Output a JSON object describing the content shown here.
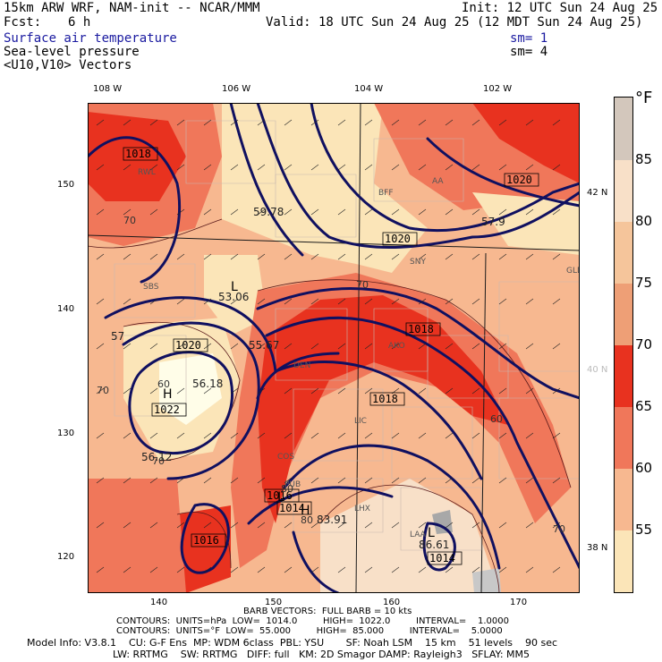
{
  "header": {
    "model_line": "15km ARW WRF, NAM-init -- NCAR/MMM",
    "init_line": "Init: 12 UTC Sun 24 Aug 25",
    "fcst_label": "Fcst:",
    "fcst_value": "6 h",
    "valid_line": "Valid: 18 UTC Sun 24 Aug 25 (12 MDT Sun 24 Aug 25)",
    "field1": "Surface air temperature",
    "field1_sm": "sm= 1",
    "field2": "Sea-level pressure",
    "field2_sm": "sm= 4",
    "field3": "<U10,V10> Vectors"
  },
  "axes": {
    "top_lon": [
      "108 W",
      "106 W",
      "104 W",
      "102 W"
    ],
    "right_lat": [
      "42 N",
      "40 N",
      "38 N"
    ],
    "left_y": [
      "150",
      "140",
      "130",
      "120"
    ],
    "bottom_x": [
      "140",
      "150",
      "160",
      "170"
    ]
  },
  "colorbar": {
    "unit": "°F",
    "labels": [
      "85",
      "80",
      "75",
      "70",
      "65",
      "60",
      "55"
    ],
    "colors": [
      "#fdf4e0",
      "#d3c7bc",
      "#f8e0c8",
      "#f5c59b",
      "#ee9f76",
      "#e8321f",
      "#f0775a",
      "#f7b890",
      "#fbe5b8",
      "#fffde8"
    ]
  },
  "map_labels": {
    "pressure": [
      "1018",
      "1020",
      "1020",
      "1018",
      "1022",
      "1020",
      "1018",
      "1016",
      "1016",
      "1014",
      "1014"
    ],
    "temp": [
      "70",
      "70",
      "70",
      "60",
      "70",
      "80",
      "60",
      "70",
      "80"
    ],
    "extrema": [
      "59.78",
      "57.9",
      "53.06",
      "57",
      "56.18",
      "55.67",
      "56.12",
      "83.91",
      "86.61"
    ],
    "highs_lows": [
      "H",
      "L",
      "H",
      "L",
      "L"
    ],
    "stations": [
      "RWL",
      "BFF",
      "AA",
      "SNY",
      "DEN",
      "AKO",
      "LIC",
      "COS",
      "PUB",
      "LHX",
      "LAA",
      "GLD",
      "SBS"
    ]
  },
  "footer": {
    "barb": "BARB VECTORS:  FULL BARB = 10 kts",
    "contours1": "CONTOURS:  UNITS=hPa  LOW=  1014.0         HIGH=  1022.0         INTERVAL=    1.0000",
    "contours2": "CONTOURS:  UNITS=°F  LOW=  55.000         HIGH=  85.000         INTERVAL=    5.0000",
    "model1": "Model Info: V3.8.1    CU: G-F Ens  MP: WDM 6class  PBL: YSU       SF: Noah LSM    15 km    51 levels    90 sec",
    "model2": "LW: RRTMG    SW: RRTMG   DIFF: full   KM: 2D Smagor DAMP: Rayleigh3   SFLAY: MM5"
  }
}
